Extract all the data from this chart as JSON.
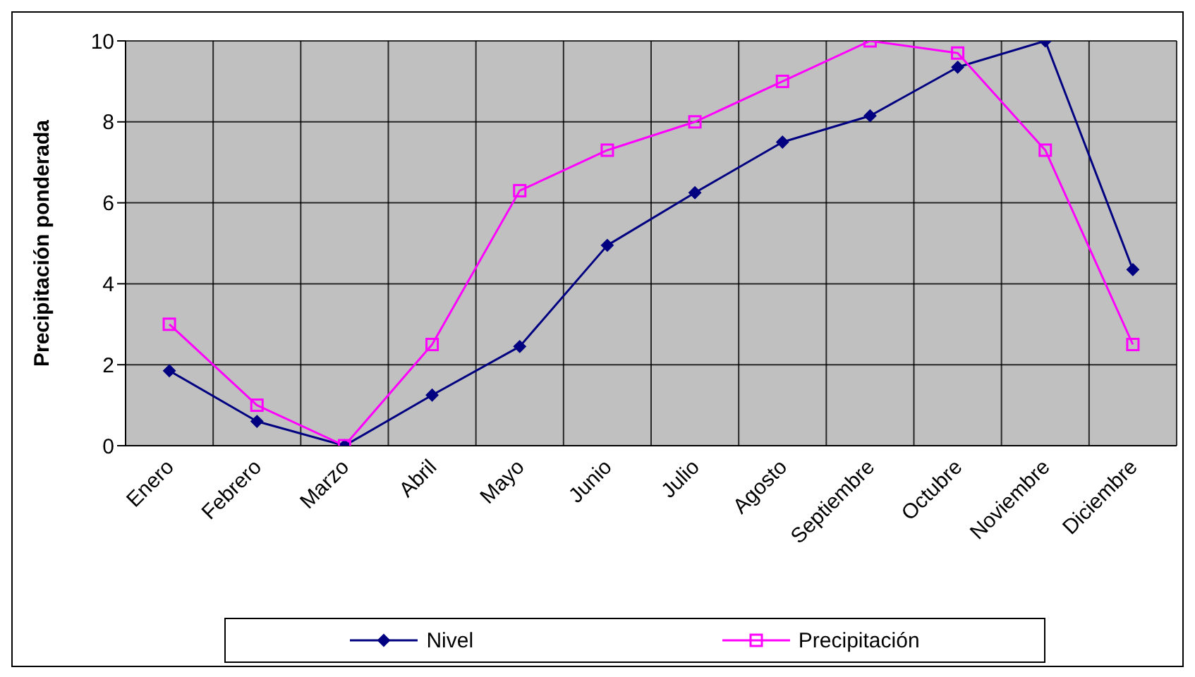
{
  "chart_data": {
    "type": "line",
    "ylabel": "Precipitación ponderada",
    "categories": [
      "Enero",
      "Febrero",
      "Marzo",
      "Abril",
      "Mayo",
      "Junio",
      "Julio",
      "Agosto",
      "Septiembre",
      "Octubre",
      "Noviembre",
      "Diciembre"
    ],
    "series": [
      {
        "name": "Nivel",
        "color": "#000080",
        "marker": "diamond",
        "values": [
          1.85,
          0.6,
          0,
          1.25,
          2.45,
          4.95,
          6.25,
          7.5,
          8.15,
          9.35,
          10,
          4.35
        ]
      },
      {
        "name": "Precipitación",
        "color": "#ff00ff",
        "marker": "square",
        "values": [
          3.0,
          1.0,
          0,
          2.5,
          6.3,
          7.3,
          8.0,
          9.0,
          10,
          9.7,
          7.3,
          2.5
        ]
      }
    ],
    "ylim": [
      0,
      10
    ],
    "yticks": [
      0,
      2,
      4,
      6,
      8,
      10
    ],
    "grid": true,
    "legend": "bottom"
  }
}
